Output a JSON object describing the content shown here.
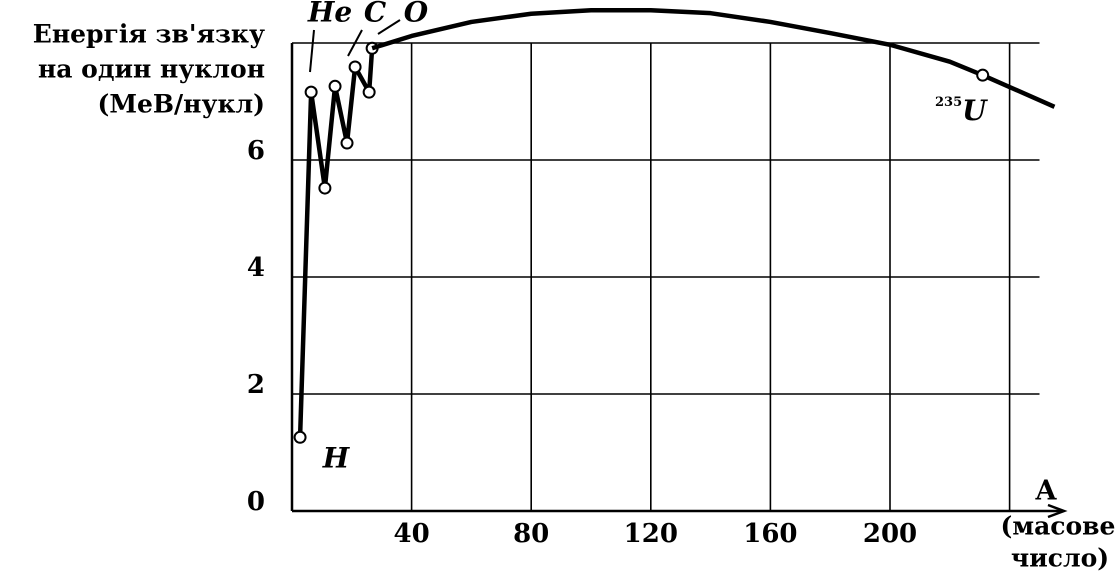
{
  "chart_data": {
    "type": "line",
    "y_title": [
      "Енергія зв'язку",
      "на один нуклон",
      "(МеВ/нукл)"
    ],
    "x_title": [
      "A",
      "(масове",
      "число)"
    ],
    "xlim": [
      0,
      250
    ],
    "ylim": [
      0,
      8
    ],
    "xticks": [
      40,
      80,
      120,
      160,
      200
    ],
    "yticks": [
      0,
      2,
      4,
      6
    ],
    "xgrid": [
      40,
      80,
      120,
      160,
      200,
      240
    ],
    "ygrid": [
      2,
      4,
      6,
      8
    ],
    "grid": true,
    "series": [
      {
        "color": "#000000",
        "markers": true,
        "line": true,
        "x": [
          2.7,
          6.4,
          11,
          14.4,
          18.4,
          21.1,
          25.8,
          26.8
        ],
        "values": [
          1.26,
          7.16,
          5.52,
          7.26,
          6.29,
          7.59,
          7.16,
          7.91
        ]
      },
      {
        "color": "#000000",
        "markers": false,
        "line": true,
        "x": [
          26.8,
          40,
          60,
          80,
          100,
          120,
          140,
          160,
          180,
          200,
          220,
          231,
          255
        ],
        "values": [
          7.91,
          8.12,
          8.36,
          8.5,
          8.56,
          8.56,
          8.51,
          8.36,
          8.17,
          7.97,
          7.68,
          7.45,
          6.91
        ]
      },
      {
        "color": "#000000",
        "markers": true,
        "line": false,
        "x": [
          231
        ],
        "values": [
          7.45
        ]
      }
    ],
    "annotations": [
      {
        "text": "H"
      },
      {
        "text": "He"
      },
      {
        "text": "C"
      },
      {
        "text": "O"
      },
      {
        "text": "U",
        "sup": "235"
      }
    ]
  }
}
